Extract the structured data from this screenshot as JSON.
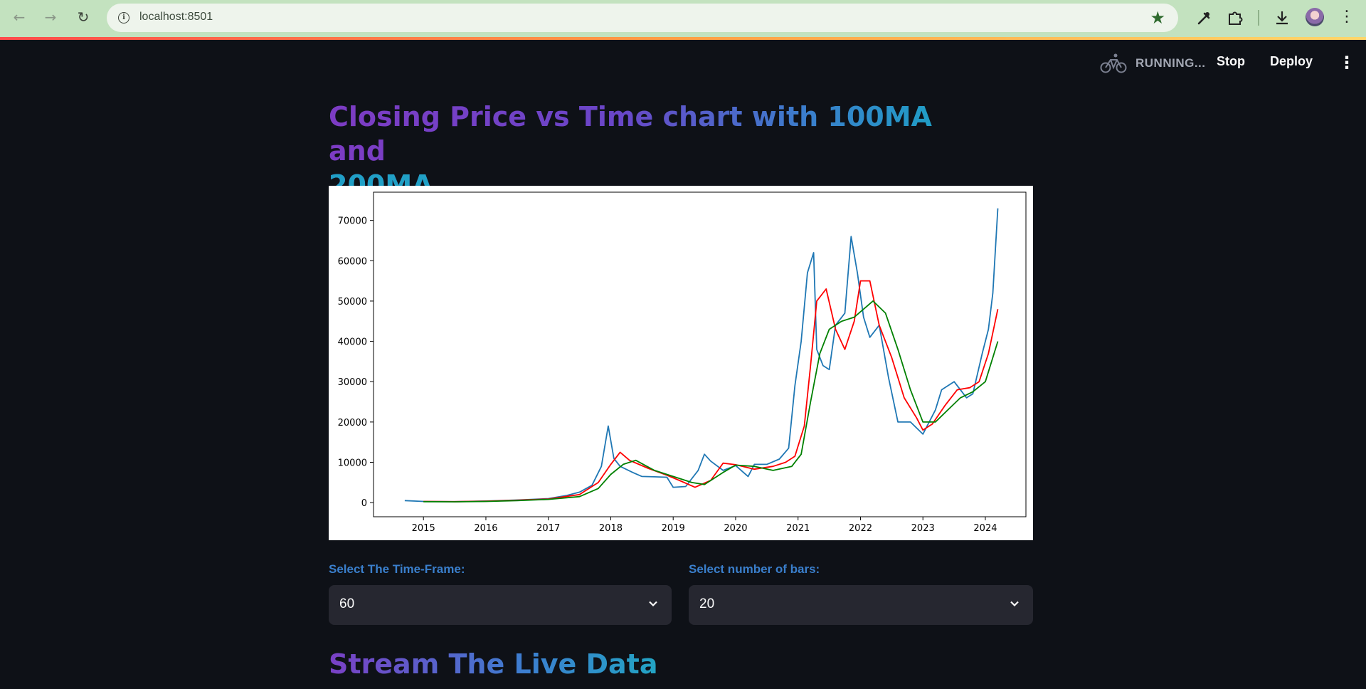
{
  "browser": {
    "url": "localhost:8501",
    "nav_icons": [
      "arrow-back-icon",
      "arrow-forward-icon",
      "reload-icon"
    ],
    "toolbar_icons": [
      "site-info-icon",
      "bookmark-star-icon",
      "eyedropper-icon",
      "extensions-icon",
      "download-icon",
      "profile-avatar",
      "browser-menu-icon"
    ]
  },
  "app_header": {
    "status": "RUNNING...",
    "stop_label": "Stop",
    "deploy_label": "Deploy"
  },
  "main": {
    "title_line1": "Closing Price vs Time chart with 100MA and",
    "title_line2": "200MA",
    "time_frame": {
      "label": "Select The Time-Frame:",
      "value": "60"
    },
    "num_bars": {
      "label": "Select number of bars:",
      "value": "20"
    },
    "section_title": "Stream The Live Data"
  },
  "colors": {
    "background": "#0e1117",
    "close_line": "#1f77b4",
    "ma100_line": "#ff0000",
    "ma200_line": "#008000",
    "label_blue": "#3a7fcc"
  },
  "chart_data": {
    "type": "line",
    "title": "",
    "xlabel": "",
    "ylabel": "",
    "x_tick_labels": [
      "2015",
      "2016",
      "2017",
      "2018",
      "2019",
      "2020",
      "2021",
      "2022",
      "2023",
      "2024"
    ],
    "y_tick_labels": [
      "0",
      "10000",
      "20000",
      "30000",
      "40000",
      "50000",
      "60000",
      "70000"
    ],
    "xlim": [
      2014.2,
      2024.65
    ],
    "ylim": [
      -3500,
      77000
    ],
    "grid": false,
    "legend": false,
    "series": [
      {
        "color": "#1f77b4",
        "x": [
          2014.7,
          2015.0,
          2015.5,
          2016.0,
          2016.5,
          2017.0,
          2017.3,
          2017.5,
          2017.7,
          2017.85,
          2017.96,
          2018.05,
          2018.15,
          2018.35,
          2018.5,
          2018.7,
          2018.9,
          2019.0,
          2019.2,
          2019.4,
          2019.5,
          2019.6,
          2019.8,
          2020.0,
          2020.2,
          2020.3,
          2020.5,
          2020.7,
          2020.85,
          2020.95,
          2021.05,
          2021.15,
          2021.25,
          2021.3,
          2021.4,
          2021.5,
          2021.6,
          2021.75,
          2021.85,
          2021.95,
          2022.05,
          2022.15,
          2022.3,
          2022.45,
          2022.6,
          2022.8,
          2023.0,
          2023.2,
          2023.3,
          2023.5,
          2023.7,
          2023.8,
          2023.95,
          2024.05,
          2024.12,
          2024.2
        ],
        "y": [
          500,
          300,
          250,
          400,
          650,
          1000,
          1800,
          2600,
          4300,
          9000,
          19000,
          11000,
          9000,
          7500,
          6500,
          6400,
          6300,
          3800,
          4000,
          8000,
          12000,
          10300,
          8000,
          9200,
          6500,
          9500,
          9500,
          10800,
          13500,
          29000,
          40000,
          57000,
          62000,
          38000,
          34000,
          33000,
          44000,
          47000,
          66000,
          57000,
          46000,
          41000,
          44000,
          31000,
          20000,
          20000,
          17000,
          23000,
          28000,
          30000,
          26000,
          27000,
          37000,
          43000,
          52000,
          73000
        ]
      },
      {
        "color": "#ff0000",
        "x": [
          2015.0,
          2015.5,
          2016.0,
          2016.5,
          2017.0,
          2017.5,
          2017.8,
          2018.0,
          2018.15,
          2018.3,
          2018.6,
          2018.9,
          2019.1,
          2019.35,
          2019.6,
          2019.8,
          2020.0,
          2020.3,
          2020.6,
          2020.8,
          2020.95,
          2021.1,
          2021.2,
          2021.3,
          2021.45,
          2021.6,
          2021.75,
          2021.9,
          2022.0,
          2022.15,
          2022.3,
          2022.5,
          2022.7,
          2022.9,
          2023.0,
          2023.15,
          2023.35,
          2023.55,
          2023.75,
          2023.9,
          2024.05,
          2024.2
        ],
        "y": [
          300,
          250,
          350,
          600,
          900,
          2000,
          5000,
          9500,
          12500,
          10500,
          8500,
          6800,
          5500,
          3800,
          5500,
          9800,
          9400,
          8300,
          9000,
          10000,
          11500,
          19000,
          34000,
          50000,
          53000,
          43000,
          38000,
          45000,
          55000,
          55000,
          44000,
          36000,
          26000,
          21000,
          18000,
          19500,
          24000,
          28000,
          28500,
          30000,
          37000,
          48000
        ]
      },
      {
        "color": "#008000",
        "x": [
          2015.0,
          2015.5,
          2016.0,
          2016.5,
          2017.0,
          2017.5,
          2017.8,
          2018.0,
          2018.2,
          2018.4,
          2018.7,
          2019.0,
          2019.3,
          2019.5,
          2019.8,
          2020.0,
          2020.3,
          2020.6,
          2020.9,
          2021.05,
          2021.2,
          2021.35,
          2021.5,
          2021.7,
          2021.9,
          2022.05,
          2022.2,
          2022.4,
          2022.6,
          2022.8,
          2023.0,
          2023.2,
          2023.4,
          2023.6,
          2023.8,
          2024.0,
          2024.2
        ],
        "y": [
          250,
          200,
          300,
          500,
          800,
          1500,
          3500,
          7000,
          9500,
          10500,
          8000,
          6500,
          5000,
          4500,
          7500,
          9300,
          9000,
          8000,
          9000,
          12000,
          25000,
          37000,
          43000,
          45000,
          46000,
          48000,
          50000,
          47000,
          38000,
          28000,
          20000,
          20000,
          23000,
          26000,
          27500,
          30000,
          40000
        ]
      }
    ]
  }
}
